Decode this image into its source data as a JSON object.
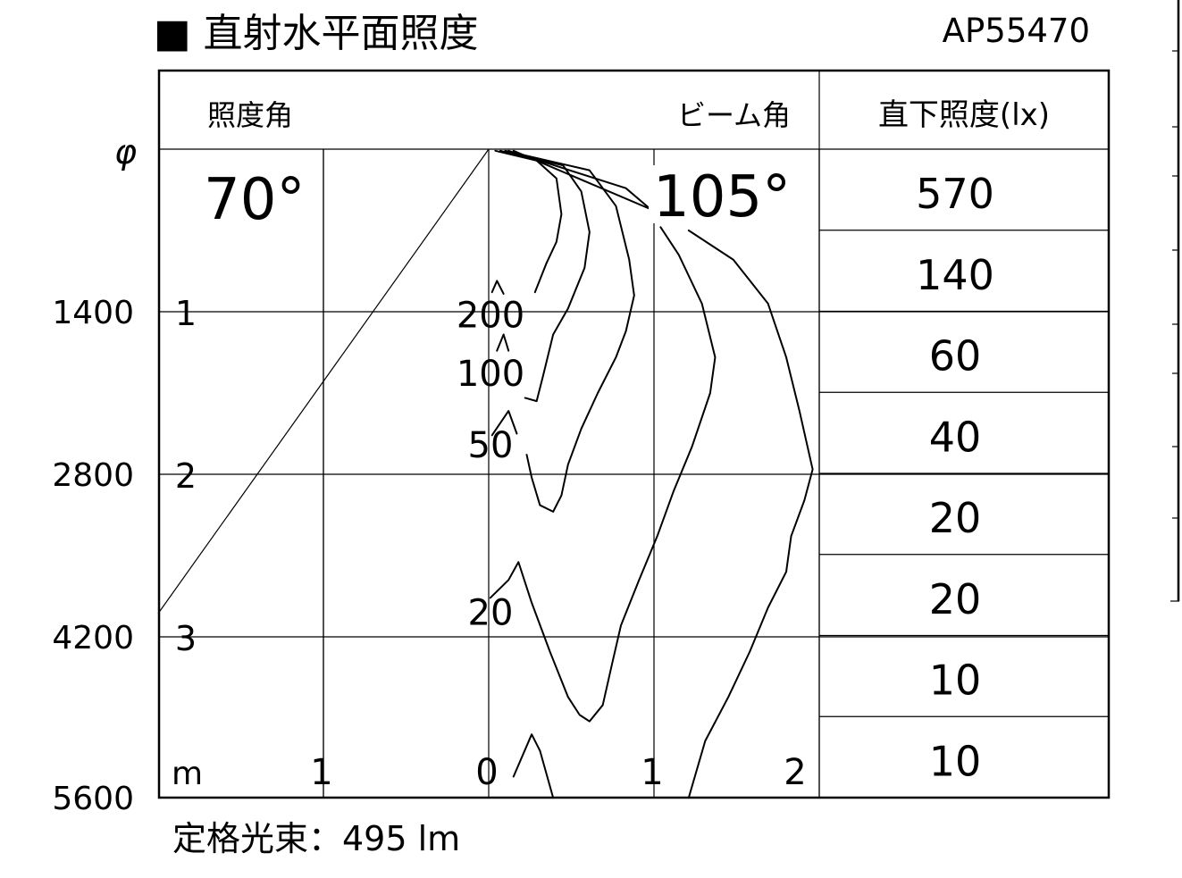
{
  "title": "■ 直射水平面照度",
  "model": "AP55470",
  "header": {
    "illum_angle_label": "照度角",
    "beam_angle_label": "ビーム角",
    "center_illum_label": "直下照度(lx)"
  },
  "phi_label": "φ",
  "illum_angle": "70°",
  "beam_angle": "105°",
  "footer": "定格光束：495 lm",
  "chart_data": {
    "type": "contour",
    "x_unit_label": "m",
    "x_ticks": [
      "1",
      "0",
      "1",
      "2"
    ],
    "x_tick_values": [
      -1,
      0,
      1,
      2
    ],
    "y_ticks_m": [
      "1",
      "2",
      "3"
    ],
    "y_tick_values": [
      1,
      2,
      3
    ],
    "diameter_ticks": [
      "1400",
      "2800",
      "4200",
      "5600"
    ],
    "xlim": [
      -2,
      2
    ],
    "ylim": [
      0,
      4
    ],
    "grid": true,
    "illum_angle_deg": 70,
    "center_illuminance_lx": [
      "570",
      "140",
      "60",
      "40",
      "20",
      "20",
      "10",
      "10"
    ],
    "contour_labels": [
      {
        "text": "200",
        "x": 0.0,
        "y": 1.02
      },
      {
        "text": "100",
        "x": 0.0,
        "y": 1.38
      },
      {
        "text": "50",
        "x": 0.0,
        "y": 1.82
      },
      {
        "text": "20",
        "x": 0.0,
        "y": 2.85
      }
    ],
    "contours": [
      {
        "level": 200,
        "points": [
          [
            0.04,
            0.01
          ],
          [
            0.29,
            0.07
          ],
          [
            0.41,
            0.18
          ],
          [
            0.44,
            0.4
          ],
          [
            0.41,
            0.57
          ],
          [
            0.35,
            0.7
          ],
          [
            0.28,
            0.88
          ]
        ]
      },
      {
        "level": 200,
        "points": [
          [
            0.02,
            0.88
          ],
          [
            0.05,
            0.81
          ],
          [
            0.09,
            0.89
          ]
        ]
      },
      {
        "level": 100,
        "points": [
          [
            0.07,
            0.01
          ],
          [
            0.45,
            0.1
          ],
          [
            0.56,
            0.26
          ],
          [
            0.61,
            0.51
          ],
          [
            0.58,
            0.73
          ],
          [
            0.48,
            0.98
          ],
          [
            0.39,
            1.14
          ],
          [
            0.33,
            1.39
          ],
          [
            0.29,
            1.55
          ],
          [
            0.22,
            1.53
          ]
        ]
      },
      {
        "level": 100,
        "points": [
          [
            0.05,
            1.24
          ],
          [
            0.09,
            1.14
          ],
          [
            0.12,
            1.24
          ]
        ]
      },
      {
        "level": 50,
        "points": [
          [
            0.1,
            0.01
          ],
          [
            0.61,
            0.13
          ],
          [
            0.77,
            0.35
          ],
          [
            0.85,
            0.68
          ],
          [
            0.88,
            0.9
          ],
          [
            0.83,
            1.12
          ],
          [
            0.77,
            1.28
          ],
          [
            0.66,
            1.5
          ],
          [
            0.56,
            1.72
          ],
          [
            0.48,
            1.94
          ],
          [
            0.44,
            2.13
          ],
          [
            0.39,
            2.23
          ],
          [
            0.31,
            2.19
          ],
          [
            0.26,
            2.02
          ],
          [
            0.23,
            1.88
          ]
        ]
      },
      {
        "level": 50,
        "points": [
          [
            0.02,
            1.76
          ],
          [
            0.12,
            1.61
          ],
          [
            0.17,
            1.75
          ]
        ]
      },
      {
        "level": 20,
        "points": [
          [
            0.12,
            0.01
          ],
          [
            0.83,
            0.24
          ],
          [
            0.98,
            0.37
          ]
        ]
      },
      {
        "level": 20,
        "points": [
          [
            1.04,
            0.48
          ],
          [
            1.15,
            0.65
          ],
          [
            1.29,
            0.95
          ],
          [
            1.37,
            1.28
          ],
          [
            1.34,
            1.5
          ],
          [
            1.23,
            1.83
          ],
          [
            1.12,
            2.1
          ],
          [
            1.02,
            2.38
          ],
          [
            0.91,
            2.65
          ],
          [
            0.8,
            2.93
          ],
          [
            0.75,
            3.15
          ],
          [
            0.69,
            3.42
          ],
          [
            0.61,
            3.52
          ],
          [
            0.55,
            3.48
          ],
          [
            0.48,
            3.37
          ],
          [
            0.37,
            3.09
          ],
          [
            0.26,
            2.79
          ],
          [
            0.18,
            2.54
          ],
          [
            0.12,
            2.65
          ],
          [
            0.01,
            2.76
          ]
        ]
      },
      {
        "level": 10,
        "points": [
          [
            0.15,
            0.01
          ],
          [
            1.12,
            0.43
          ]
        ]
      },
      {
        "level": 10,
        "points": [
          [
            1.21,
            0.5
          ],
          [
            1.48,
            0.68
          ],
          [
            1.69,
            0.95
          ],
          [
            1.8,
            1.28
          ],
          [
            1.88,
            1.61
          ],
          [
            1.96,
            1.97
          ],
          [
            1.91,
            2.16
          ],
          [
            1.83,
            2.38
          ],
          [
            1.8,
            2.6
          ],
          [
            1.69,
            2.82
          ],
          [
            1.58,
            3.09
          ],
          [
            1.45,
            3.37
          ],
          [
            1.31,
            3.64
          ],
          [
            1.23,
            3.92
          ],
          [
            1.21,
            3.99
          ]
        ]
      },
      {
        "level": 10,
        "points": [
          [
            0.15,
            3.86
          ],
          [
            0.26,
            3.6
          ],
          [
            0.31,
            3.7
          ],
          [
            0.39,
            3.99
          ]
        ]
      }
    ]
  }
}
